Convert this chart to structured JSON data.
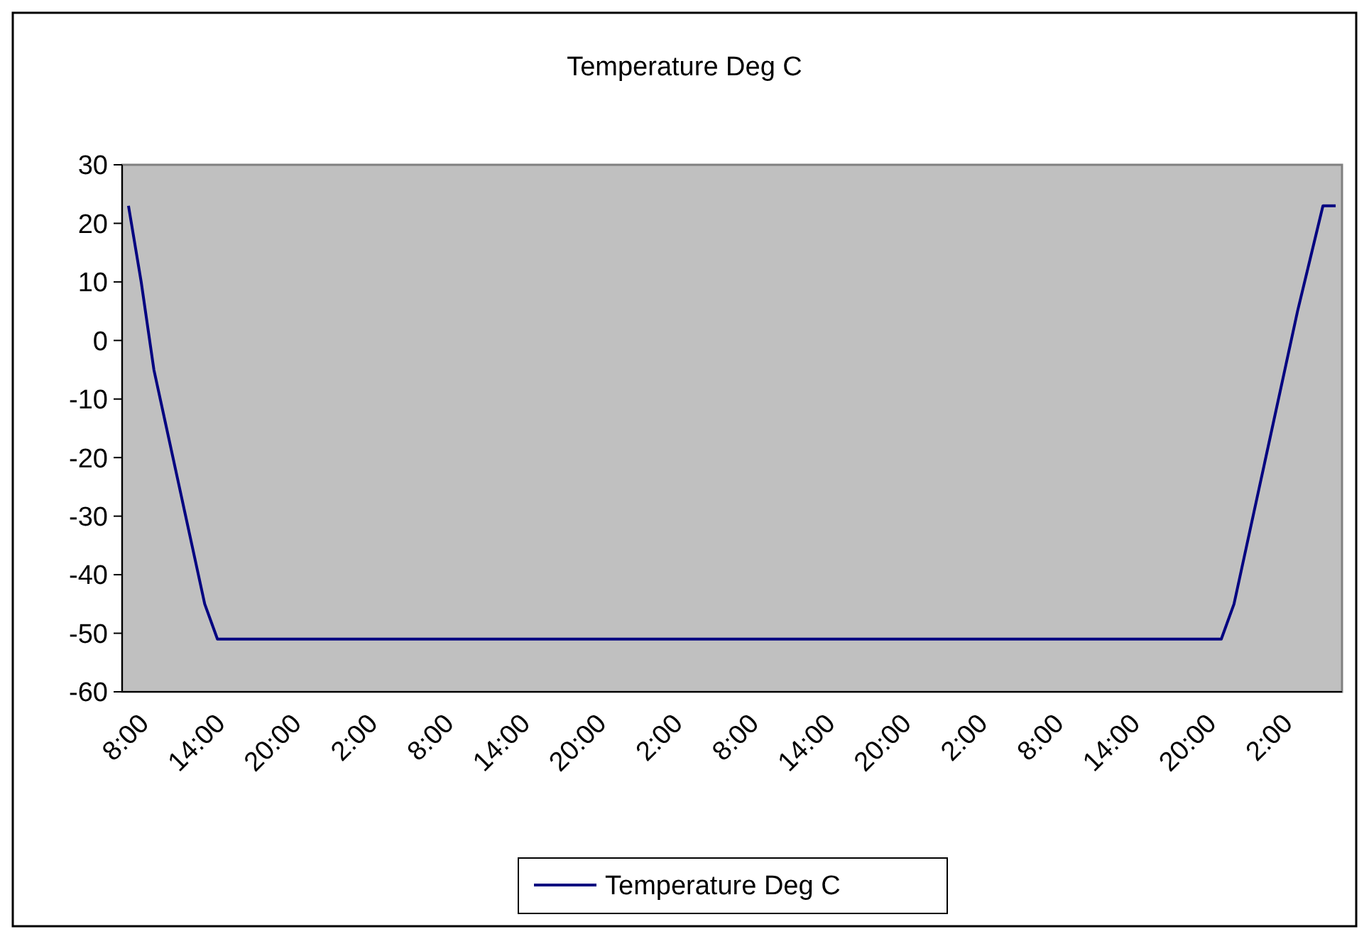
{
  "chart_data": {
    "type": "line",
    "title": "Temperature Deg C",
    "categories": [
      "8:00",
      null,
      null,
      null,
      null,
      null,
      "14:00",
      null,
      null,
      null,
      null,
      null,
      "20:00",
      null,
      null,
      null,
      null,
      null,
      "2:00",
      null,
      null,
      null,
      null,
      null,
      "8:00",
      null,
      null,
      null,
      null,
      null,
      "14:00",
      null,
      null,
      null,
      null,
      null,
      "20:00",
      null,
      null,
      null,
      null,
      null,
      "2:00",
      null,
      null,
      null,
      null,
      null,
      "8:00",
      null,
      null,
      null,
      null,
      null,
      "14:00",
      null,
      null,
      null,
      null,
      null,
      "20:00",
      null,
      null,
      null,
      null,
      null,
      "2:00",
      null,
      null,
      null,
      null,
      null,
      "8:00",
      null,
      null,
      null,
      null,
      null,
      "14:00",
      null,
      null,
      null,
      null,
      null,
      "20:00",
      null,
      null,
      null,
      null,
      null,
      "2:00",
      null,
      null,
      null,
      null,
      null
    ],
    "series": [
      {
        "name": "Temperature Deg C",
        "color": "#000080",
        "values": [
          23,
          10,
          -5,
          -15,
          -25,
          -35,
          -45,
          -51,
          -51,
          -51,
          -51,
          -51,
          -51,
          -51,
          -51,
          -51,
          -51,
          -51,
          -51,
          -51,
          -51,
          -51,
          -51,
          -51,
          -51,
          -51,
          -51,
          -51,
          -51,
          -51,
          -51,
          -51,
          -51,
          -51,
          -51,
          -51,
          -51,
          -51,
          -51,
          -51,
          -51,
          -51,
          -51,
          -51,
          -51,
          -51,
          -51,
          -51,
          -51,
          -51,
          -51,
          -51,
          -51,
          -51,
          -51,
          -51,
          -51,
          -51,
          -51,
          -51,
          -51,
          -51,
          -51,
          -51,
          -51,
          -51,
          -51,
          -51,
          -51,
          -51,
          -51,
          -51,
          -51,
          -51,
          -51,
          -51,
          -51,
          -51,
          -51,
          -51,
          -51,
          -51,
          -51,
          -51,
          -51,
          -51,
          -51,
          -45,
          -35,
          -25,
          -15,
          -5,
          5,
          14,
          23,
          23
        ]
      }
    ],
    "ylim": [
      -60,
      30
    ],
    "yticks": [
      -60,
      -50,
      -40,
      -30,
      -20,
      -10,
      0,
      10,
      20,
      30
    ],
    "grid": false,
    "legend": "bottom",
    "marker": "none",
    "line_style": "solid"
  }
}
